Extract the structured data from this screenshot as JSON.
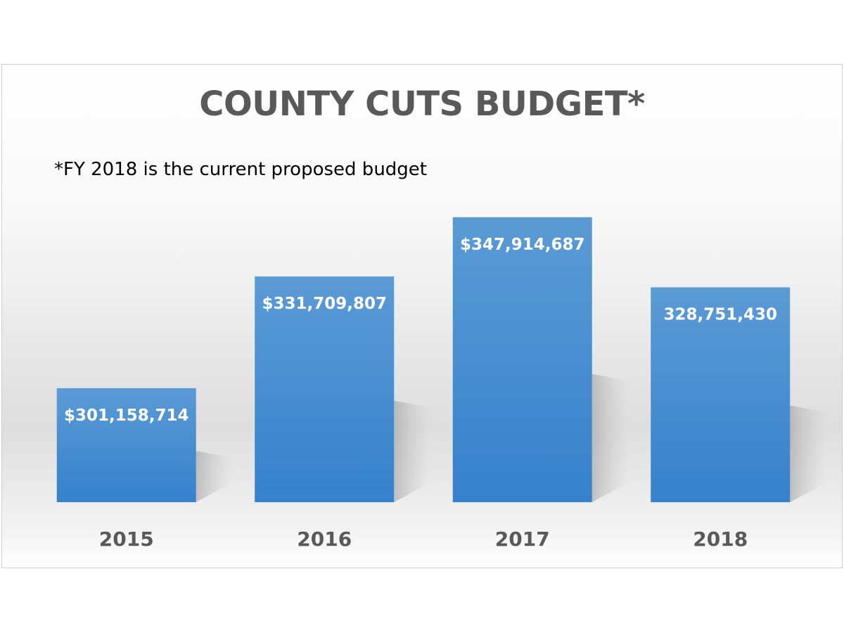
{
  "chart_data": {
    "type": "bar",
    "title": "COUNTY CUTS BUDGET*",
    "subtitle": "*FY 2018  is the current proposed budget",
    "xlabel": "",
    "ylabel": "",
    "categories": [
      "2015",
      "2016",
      "2017",
      "2018"
    ],
    "values": [
      301158714,
      331709807,
      347914687,
      328751430
    ],
    "data_labels": [
      "$301,158,714",
      "$331,709,807",
      "$347,914,687",
      "328,751,430"
    ],
    "ylim": [
      270000000,
      355000000
    ],
    "grid": false,
    "legend": "none",
    "colors": {
      "bar_top": "#5b9bd5",
      "bar_bottom": "#3681cc",
      "title": "#595959",
      "tick": "#595959",
      "data_label": "#ffffff"
    }
  }
}
